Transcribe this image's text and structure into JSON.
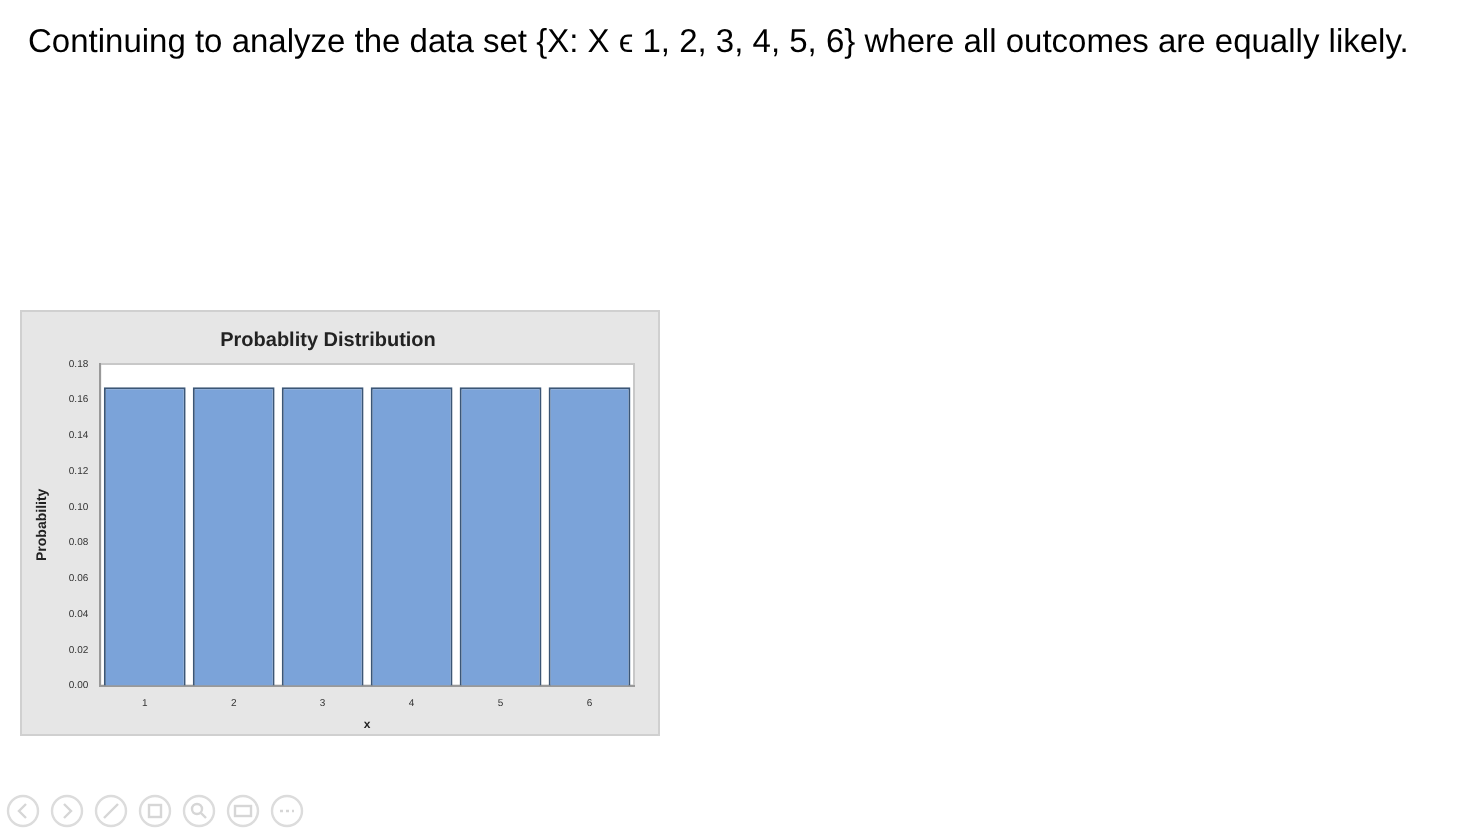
{
  "chart_data": {
    "type": "bar",
    "title": "Probablity Distribution",
    "xlabel": "x",
    "ylabel": "Probability",
    "annotations": [
      "Continuing to analyze the data set {X: X ϵ 1, 2, 3, 4, 5, 6} where all outcomes are equally likely."
    ],
    "categories": [
      "1",
      "2",
      "3",
      "4",
      "5",
      "6"
    ],
    "values": [
      0.167,
      0.167,
      0.167,
      0.167,
      0.167,
      0.167
    ],
    "color": "#7ba3d9",
    "ylim": [
      0,
      0.18
    ],
    "yticks": [
      {
        "value": 0,
        "label": "0.00"
      },
      {
        "value": 0.02,
        "label": "0.02"
      },
      {
        "value": 0.04,
        "label": "0.04"
      },
      {
        "value": 0.06,
        "label": "0.06"
      },
      {
        "value": 0.08,
        "label": "0.08"
      },
      {
        "value": 0.1,
        "label": "0.10"
      },
      {
        "value": 0.12,
        "label": "0.12"
      },
      {
        "value": 0.14,
        "label": "0.14"
      },
      {
        "value": 0.16,
        "label": "0.16"
      },
      {
        "value": 0.18,
        "label": "0.18"
      }
    ],
    "grid": false,
    "legend": false
  }
}
